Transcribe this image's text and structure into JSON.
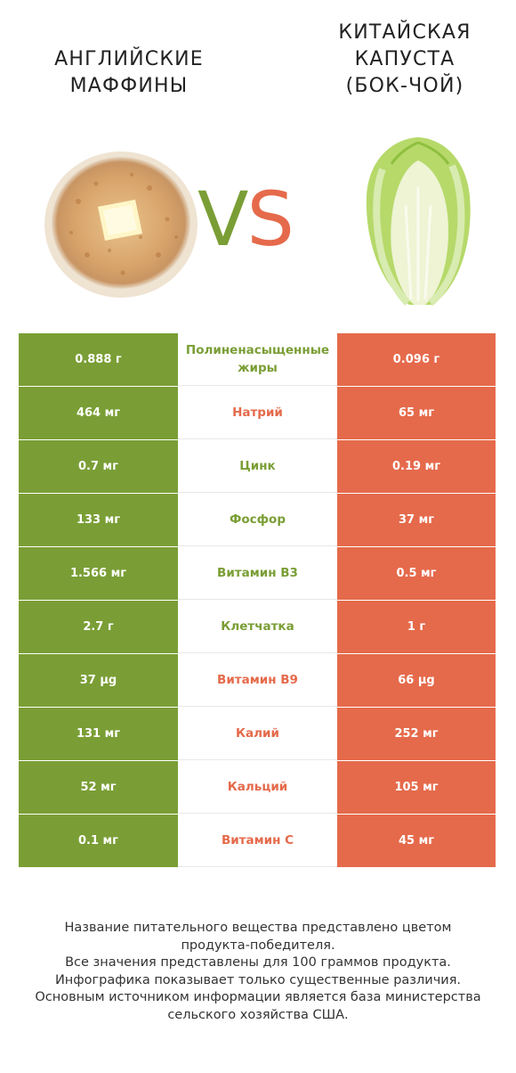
{
  "header": {
    "left_title_lines": [
      "АНГЛИЙСКИЕ",
      "МАФФИНЫ"
    ],
    "right_title_lines": [
      "КИТАЙСКАЯ",
      "КАПУСТА",
      "(БОК-ЧОЙ)"
    ],
    "vs_v": "V",
    "vs_s": "S"
  },
  "colors": {
    "left_product": "#7a9e35",
    "right_product": "#e56a4b"
  },
  "rows": [
    {
      "left": "0.888 г",
      "nutrient": "Полиненасыщенные жиры",
      "right": "0.096 г",
      "winner": "left"
    },
    {
      "left": "464 мг",
      "nutrient": "Натрий",
      "right": "65 мг",
      "winner": "right"
    },
    {
      "left": "0.7 мг",
      "nutrient": "Цинк",
      "right": "0.19 мг",
      "winner": "left"
    },
    {
      "left": "133 мг",
      "nutrient": "Фосфор",
      "right": "37 мг",
      "winner": "left"
    },
    {
      "left": "1.566 мг",
      "nutrient": "Витамин B3",
      "right": "0.5 мг",
      "winner": "left"
    },
    {
      "left": "2.7 г",
      "nutrient": "Клетчатка",
      "right": "1 г",
      "winner": "left"
    },
    {
      "left": "37 µg",
      "nutrient": "Витамин B9",
      "right": "66 µg",
      "winner": "right"
    },
    {
      "left": "131 мг",
      "nutrient": "Калий",
      "right": "252 мг",
      "winner": "right"
    },
    {
      "left": "52 мг",
      "nutrient": "Кальций",
      "right": "105 мг",
      "winner": "right"
    },
    {
      "left": "0.1 мг",
      "nutrient": "Витамин C",
      "right": "45 мг",
      "winner": "right"
    }
  ],
  "footer": {
    "lines": [
      "Название питательного вещества представлено цветом",
      "продукта-победителя.",
      "Все значения представлены для 100 граммов продукта.",
      "Инфографика показывает только существенные различия.",
      "Основным источником информации является база министерства",
      "сельского хозяйства США."
    ]
  }
}
